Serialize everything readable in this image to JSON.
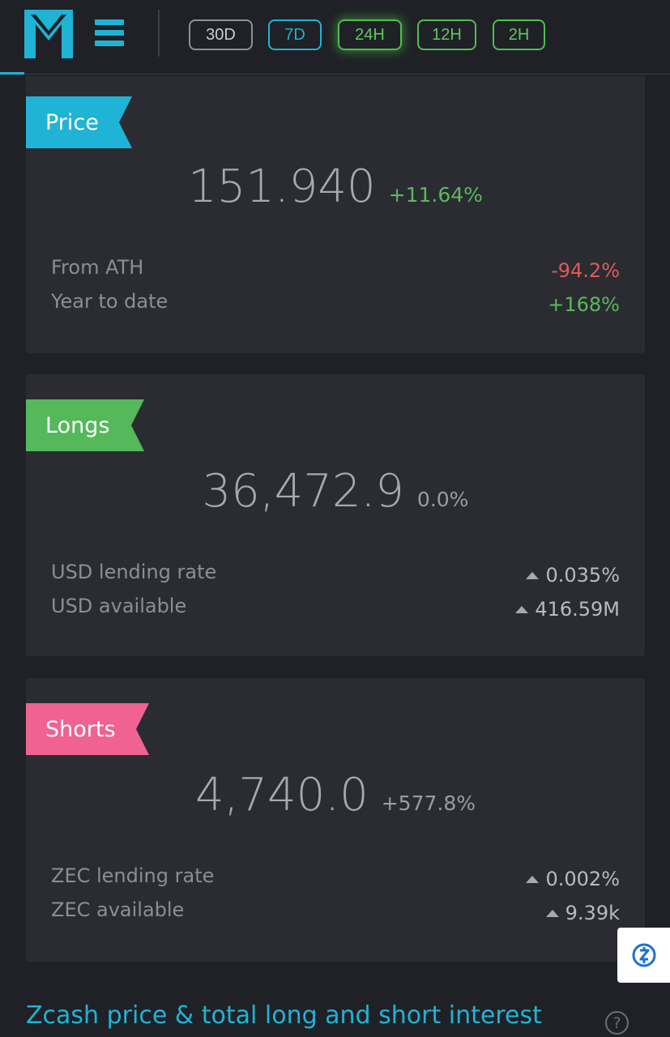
{
  "header": {
    "logo_icon": "m-logo-icon",
    "menu_icon": "hamburger-menu-icon",
    "timeframes": [
      {
        "label": "30D",
        "state": "inactive"
      },
      {
        "label": "7D",
        "state": "blue"
      },
      {
        "label": "24H",
        "state": "active"
      },
      {
        "label": "12H",
        "state": "green"
      },
      {
        "label": "2H",
        "state": "green"
      }
    ]
  },
  "price": {
    "tag": "Price",
    "value": "151.940",
    "change": "+11.64%",
    "stats": [
      {
        "label": "From ATH",
        "value": "-94.2%"
      },
      {
        "label": "Year to date",
        "value": "+168%"
      }
    ]
  },
  "longs": {
    "tag": "Longs",
    "value": "36,472.9",
    "change": "0.0%",
    "stats": [
      {
        "label": "USD lending rate",
        "value": "0.035%",
        "trend": "up"
      },
      {
        "label": "USD available",
        "value": "416.59M",
        "trend": "up"
      }
    ]
  },
  "shorts": {
    "tag": "Shorts",
    "value": "4,740.0",
    "change": "+577.8%",
    "stats": [
      {
        "label": "ZEC lending rate",
        "value": "0.002%",
        "trend": "up"
      },
      {
        "label": "ZEC available",
        "value": "9.39k",
        "trend": "up"
      }
    ]
  },
  "section": {
    "title": "Zcash price & total long and short interest",
    "help_label": "?"
  },
  "colors": {
    "accent": "#1fb3d6",
    "green": "#5cb85c",
    "red": "#e05a5a",
    "pink": "#f06292",
    "background": "#1f2126",
    "card": "#2a2c32"
  }
}
